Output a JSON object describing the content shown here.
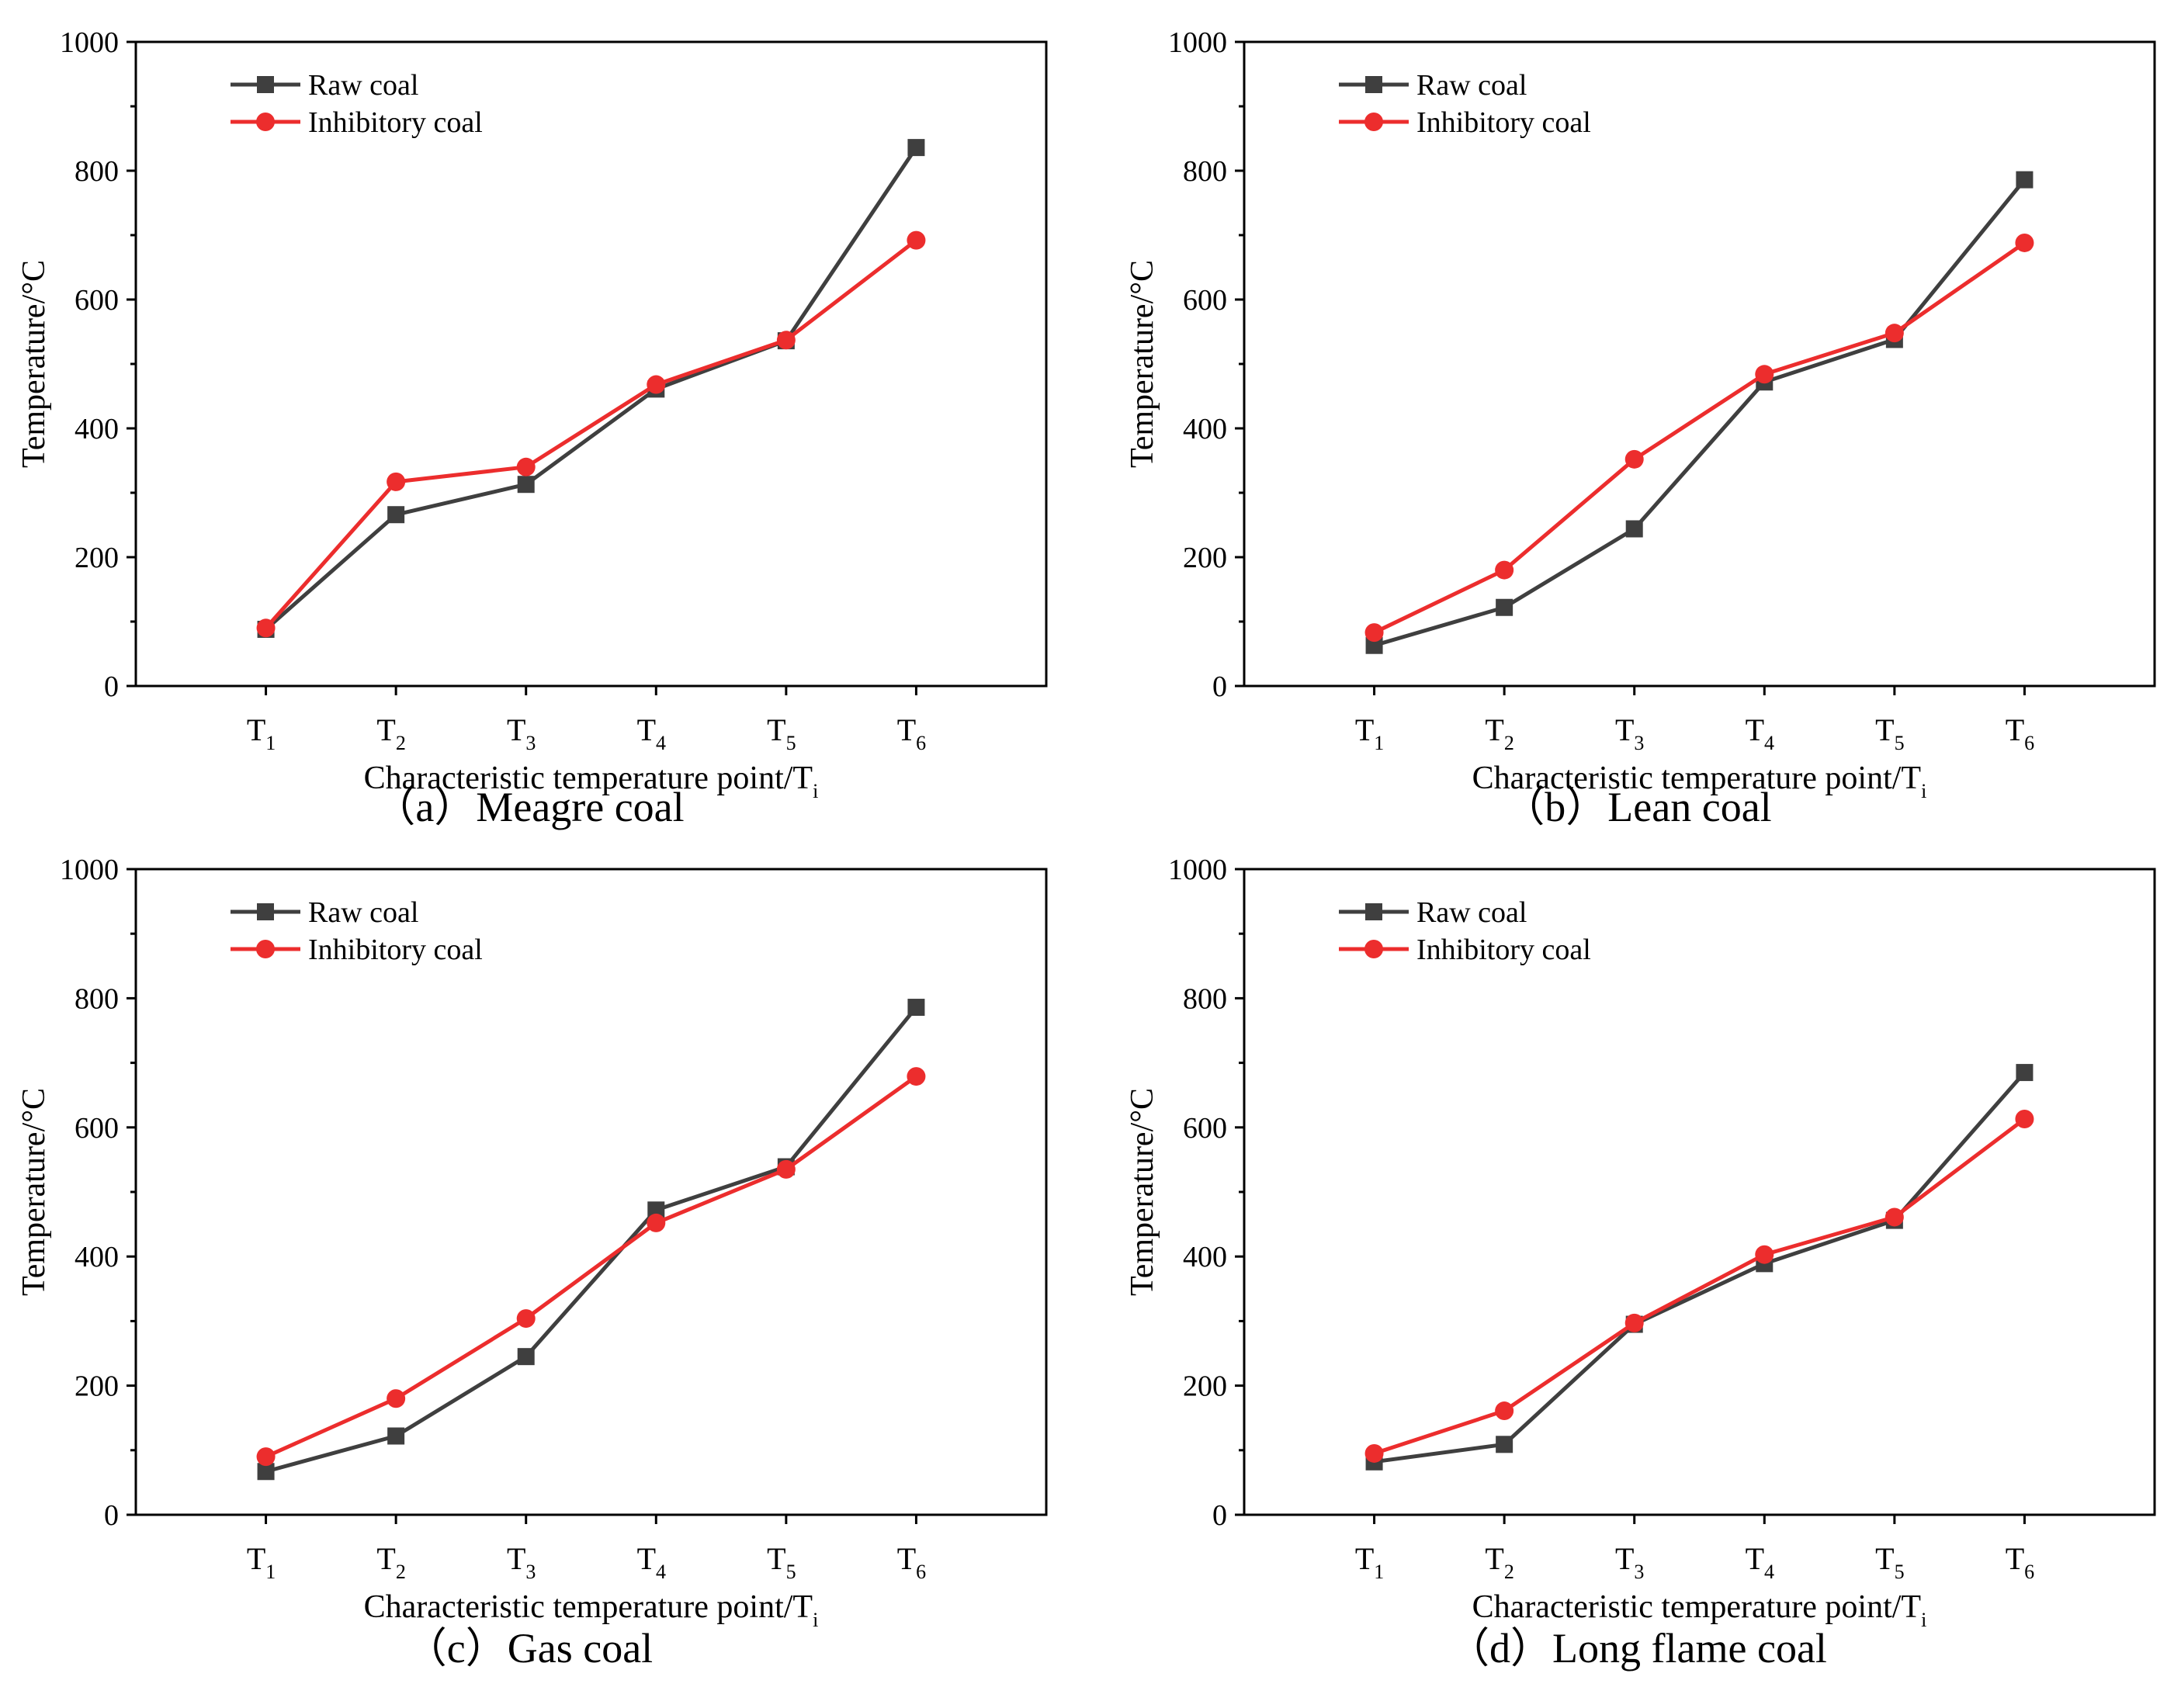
{
  "colors": {
    "raw": "#3f3f3f",
    "inhibitory": "#ec2d2d",
    "axis": "#000000"
  },
  "chart_data": [
    {
      "type": "line",
      "caption": "（a）Meagre coal",
      "xlabel": {
        "main": "Characteristic temperature point/T",
        "sub": "i"
      },
      "ylabel": "Temperature/°C",
      "ylim": [
        0,
        1000
      ],
      "yticks": [
        "0",
        "200",
        "400",
        "600",
        "800",
        "1000"
      ],
      "categories": [
        {
          "main": "T",
          "sub": "1"
        },
        {
          "main": "T",
          "sub": "2"
        },
        {
          "main": "T",
          "sub": "3"
        },
        {
          "main": "T",
          "sub": "4"
        },
        {
          "main": "T",
          "sub": "5"
        },
        {
          "main": "T",
          "sub": "6"
        }
      ],
      "series": [
        {
          "name": "Raw coal",
          "marker": "square",
          "values": [
            88,
            266,
            313,
            461,
            536,
            836
          ]
        },
        {
          "name": "Inhibitory coal",
          "marker": "circle",
          "values": [
            90,
            317,
            340,
            468,
            537,
            692
          ]
        }
      ]
    },
    {
      "type": "line",
      "caption": "（b）Lean coal",
      "xlabel": {
        "main": "Characteristic temperature point/T",
        "sub": "i"
      },
      "ylabel": "Temperature/°C",
      "ylim": [
        0,
        1000
      ],
      "yticks": [
        "0",
        "200",
        "400",
        "600",
        "800",
        "1000"
      ],
      "categories": [
        {
          "main": "T",
          "sub": "1"
        },
        {
          "main": "T",
          "sub": "2"
        },
        {
          "main": "T",
          "sub": "3"
        },
        {
          "main": "T",
          "sub": "4"
        },
        {
          "main": "T",
          "sub": "5"
        },
        {
          "main": "T",
          "sub": "6"
        }
      ],
      "series": [
        {
          "name": "Raw coal",
          "marker": "square",
          "values": [
            63,
            122,
            244,
            472,
            538,
            786
          ]
        },
        {
          "name": "Inhibitory coal",
          "marker": "circle",
          "values": [
            83,
            180,
            352,
            484,
            548,
            688
          ]
        }
      ]
    },
    {
      "type": "line",
      "caption": "（c）Gas coal",
      "xlabel": {
        "main": "Characteristic temperature point/T",
        "sub": "i"
      },
      "ylabel": "Temperature/°C",
      "ylim": [
        0,
        1000
      ],
      "yticks": [
        "0",
        "200",
        "400",
        "600",
        "800",
        "1000"
      ],
      "categories": [
        {
          "main": "T",
          "sub": "1"
        },
        {
          "main": "T",
          "sub": "2"
        },
        {
          "main": "T",
          "sub": "3"
        },
        {
          "main": "T",
          "sub": "4"
        },
        {
          "main": "T",
          "sub": "5"
        },
        {
          "main": "T",
          "sub": "6"
        }
      ],
      "series": [
        {
          "name": "Raw coal",
          "marker": "square",
          "values": [
            67,
            122,
            245,
            472,
            539,
            786
          ]
        },
        {
          "name": "Inhibitory coal",
          "marker": "circle",
          "values": [
            90,
            180,
            304,
            452,
            535,
            679
          ]
        }
      ]
    },
    {
      "type": "line",
      "caption": "（d）Long flame coal",
      "xlabel": {
        "main": "Characteristic temperature point/T",
        "sub": "i"
      },
      "ylabel": "Temperature/°C",
      "ylim": [
        0,
        1000
      ],
      "yticks": [
        "0",
        "200",
        "400",
        "600",
        "800",
        "1000"
      ],
      "categories": [
        {
          "main": "T",
          "sub": "1"
        },
        {
          "main": "T",
          "sub": "2"
        },
        {
          "main": "T",
          "sub": "3"
        },
        {
          "main": "T",
          "sub": "4"
        },
        {
          "main": "T",
          "sub": "5"
        },
        {
          "main": "T",
          "sub": "6"
        }
      ],
      "series": [
        {
          "name": "Raw coal",
          "marker": "square",
          "values": [
            82,
            109,
            295,
            389,
            456,
            685
          ]
        },
        {
          "name": "Inhibitory coal",
          "marker": "circle",
          "values": [
            95,
            161,
            297,
            403,
            461,
            613
          ]
        }
      ]
    }
  ]
}
